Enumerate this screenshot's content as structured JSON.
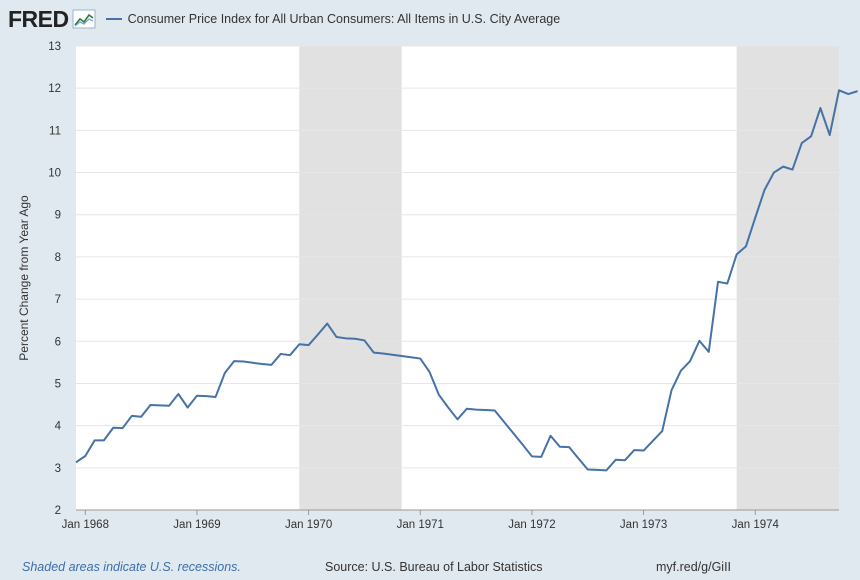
{
  "header": {
    "logo": "FRED",
    "legend_label": "Consumer Price Index for All Urban Consumers: All Items in U.S. City Average"
  },
  "footer": {
    "recession_note": "Shaded areas indicate U.S. recessions.",
    "source": "Source: U.S. Bureau of Labor Statistics",
    "short_url": "myf.red/g/GiII"
  },
  "colors": {
    "line": "#4572a7",
    "recession": "#e1e1e1",
    "background": "#e1e9f0"
  },
  "chart_data": {
    "type": "line",
    "title": "Consumer Price Index for All Urban Consumers: All Items in U.S. City Average",
    "xlabel": "",
    "ylabel": "Percent Change from Year Ago",
    "ylim": [
      2,
      13
    ],
    "yticks": [
      2,
      3,
      4,
      5,
      6,
      7,
      8,
      9,
      10,
      11,
      12,
      13
    ],
    "xlim_months": [
      0,
      82
    ],
    "xticks": [
      {
        "month": 1,
        "label": "Jan 1968"
      },
      {
        "month": 13,
        "label": "Jan 1969"
      },
      {
        "month": 25,
        "label": "Jan 1970"
      },
      {
        "month": 37,
        "label": "Jan 1971"
      },
      {
        "month": 49,
        "label": "Jan 1972"
      },
      {
        "month": 61,
        "label": "Jan 1973"
      },
      {
        "month": 73,
        "label": "Jan 1974"
      }
    ],
    "recessions": [
      {
        "start_month": 24,
        "end_month": 35,
        "label": "Dec 1969 - Nov 1970"
      },
      {
        "start_month": 71,
        "end_month": 82,
        "label": "Nov 1973 - Mar 1975"
      }
    ],
    "x_unit": "months since Dec 1967",
    "series": [
      {
        "name": "CPI percent change from year ago",
        "values": [
          3.13,
          3.28,
          3.65,
          3.65,
          3.95,
          3.94,
          4.23,
          4.21,
          4.49,
          4.48,
          4.47,
          4.75,
          4.43,
          4.71,
          4.7,
          4.68,
          5.25,
          5.53,
          5.52,
          5.49,
          5.46,
          5.44,
          5.7,
          5.67,
          5.93,
          5.91,
          6.16,
          6.42,
          6.1,
          6.07,
          6.06,
          6.02,
          5.73,
          5.71,
          5.68,
          5.65,
          5.62,
          5.59,
          5.27,
          4.73,
          4.43,
          4.15,
          4.4,
          4.38,
          4.37,
          4.36,
          4.09,
          3.82,
          3.55,
          3.27,
          3.26,
          3.76,
          3.5,
          3.49,
          3.22,
          2.96,
          2.95,
          2.94,
          3.19,
          3.18,
          3.42,
          3.41,
          3.64,
          3.87,
          4.84,
          5.3,
          5.53,
          6.01,
          5.75,
          7.41,
          7.37,
          8.06,
          8.25,
          8.93,
          9.59,
          10.0,
          10.14,
          10.07,
          10.7,
          10.86,
          11.53,
          10.89,
          11.95,
          11.86,
          11.93
        ]
      }
    ]
  }
}
